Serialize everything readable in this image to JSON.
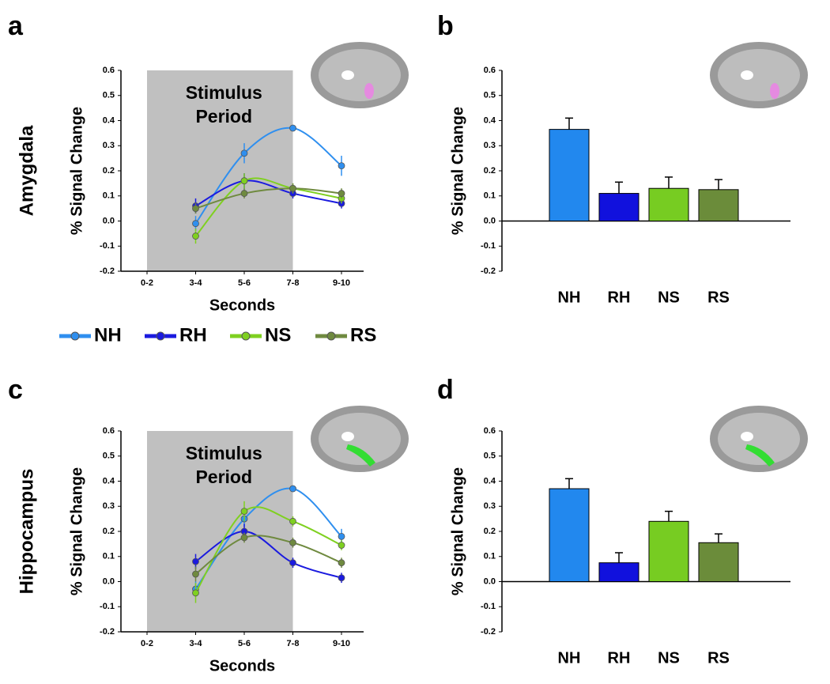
{
  "chart_data": [
    {
      "type": "line",
      "panel_label": "a",
      "row_label": "Amygdala",
      "annotation": [
        "Stimulus",
        "Period"
      ],
      "xlabel": "Seconds",
      "ylabel": "% Signal Change",
      "categories": [
        "0-2",
        "3-4",
        "5-6",
        "7-8",
        "9-10"
      ],
      "series": [
        {
          "name": "NH",
          "color": "#2f8fef",
          "values": [
            null,
            -0.01,
            0.27,
            0.37,
            0.22
          ],
          "errors": [
            null,
            0.03,
            0.04,
            0.01,
            0.04
          ]
        },
        {
          "name": "RH",
          "color": "#1a1adf",
          "values": [
            null,
            0.06,
            0.16,
            0.11,
            0.07
          ],
          "errors": [
            null,
            0.03,
            0.03,
            0.02,
            0.02
          ]
        },
        {
          "name": "NS",
          "color": "#7fd020",
          "values": [
            null,
            -0.06,
            0.16,
            0.13,
            0.09
          ],
          "errors": [
            null,
            0.03,
            0.03,
            0.02,
            0.02
          ]
        },
        {
          "name": "RS",
          "color": "#6f8a3f",
          "values": [
            null,
            0.05,
            0.11,
            0.13,
            0.11
          ],
          "errors": [
            null,
            0.02,
            0.02,
            0.02,
            0.02
          ]
        }
      ],
      "ylim": [
        -0.2,
        0.6
      ],
      "yticks": [
        -0.2,
        -0.1,
        {
          "value": 0,
          "label": "0.0"
        },
        0.1,
        0.2,
        0.3,
        0.4,
        0.5,
        0.6
      ]
    },
    {
      "type": "bar",
      "panel_label": "b",
      "ylabel": "% Signal Change",
      "categories": [
        "NH",
        "RH",
        "NS",
        "RS"
      ],
      "values": [
        0.365,
        0.11,
        0.13,
        0.125
      ],
      "errors": [
        0.045,
        0.045,
        0.045,
        0.04
      ],
      "colors": [
        "#2288ee",
        "#1111dd",
        "#77cc22",
        "#6b8c3a"
      ],
      "ylim": [
        -0.2,
        0.6
      ],
      "yticks": [
        -0.2,
        -0.1,
        {
          "value": 0,
          "label": "0.0"
        },
        0.1,
        0.2,
        0.3,
        0.4,
        0.5,
        0.6
      ]
    },
    {
      "type": "line",
      "panel_label": "c",
      "row_label": "Hippocampus",
      "annotation": [
        "Stimulus",
        "Period"
      ],
      "xlabel": "Seconds",
      "ylabel": "% Signal Change",
      "categories": [
        "0-2",
        "3-4",
        "5-6",
        "7-8",
        "9-10"
      ],
      "series": [
        {
          "color": "#2f8fef",
          "values": [
            null,
            -0.03,
            0.25,
            0.37,
            0.18
          ],
          "errors": [
            null,
            0.03,
            0.03,
            0.01,
            0.03
          ]
        },
        {
          "color": "#1a1adf",
          "values": [
            null,
            0.08,
            0.2,
            0.075,
            0.015
          ],
          "errors": [
            null,
            0.03,
            0.03,
            0.02,
            0.02
          ]
        },
        {
          "color": "#7fd020",
          "values": [
            null,
            -0.045,
            0.28,
            0.24,
            0.145
          ],
          "errors": [
            null,
            0.04,
            0.04,
            0.02,
            0.02
          ]
        },
        {
          "color": "#6f8a3f",
          "values": [
            null,
            0.03,
            0.175,
            0.155,
            0.075
          ],
          "errors": [
            null,
            0.03,
            0.02,
            0.02,
            0.02
          ]
        }
      ],
      "ylim": [
        -0.2,
        0.6
      ],
      "yticks": [
        -0.2,
        -0.1,
        {
          "value": 0,
          "label": "0.0"
        },
        0.1,
        0.2,
        0.3,
        0.4,
        0.5,
        0.6
      ]
    },
    {
      "type": "bar",
      "panel_label": "d",
      "ylabel": "% Signal Change",
      "categories": [
        "NH",
        "RH",
        "NS",
        "RS"
      ],
      "values": [
        0.37,
        0.075,
        0.24,
        0.155
      ],
      "errors": [
        0.04,
        0.04,
        0.04,
        0.035
      ],
      "colors": [
        "#2288ee",
        "#1111dd",
        "#77cc22",
        "#6b8c3a"
      ],
      "ylim": [
        -0.2,
        0.6
      ],
      "yticks": [
        -0.2,
        -0.1,
        {
          "value": 0,
          "label": "0.0"
        },
        0.1,
        0.2,
        0.3,
        0.4,
        0.5,
        0.6
      ]
    }
  ]
}
